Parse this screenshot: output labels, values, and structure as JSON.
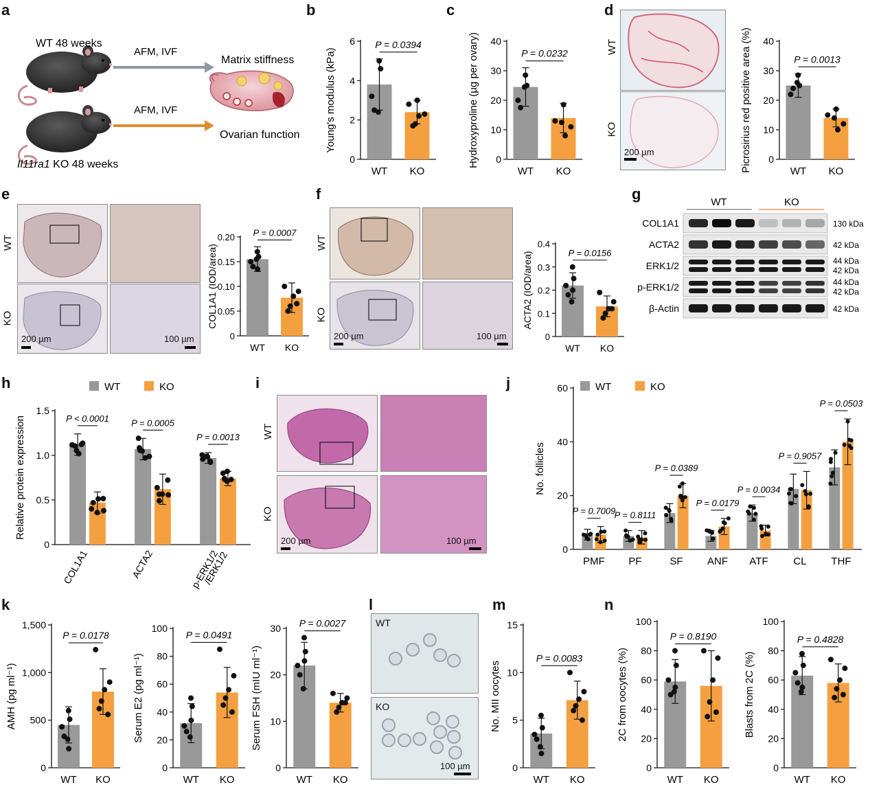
{
  "colors": {
    "wt": "#999999",
    "ko": "#f5a040",
    "ink": "#111111"
  },
  "panel_letters": [
    "a",
    "b",
    "c",
    "d",
    "e",
    "f",
    "g",
    "h",
    "i",
    "j",
    "k",
    "l",
    "m",
    "n"
  ],
  "schematic": {
    "wt_label": "WT 48 weeks",
    "ko_label_gene": "Il11ra1",
    "ko_label_rest": " KO 48 weeks",
    "arrow_top": "AFM, IVF",
    "arrow_bottom": "AFM, IVF",
    "out_top": "Matrix stiffness",
    "out_bottom": "Ovarian function"
  },
  "micro_labels": {
    "wt": "WT",
    "ko": "KO",
    "scale_200": "200 µm",
    "scale_100": "100 µm"
  },
  "western": {
    "group_wt": "WT",
    "group_ko": "KO",
    "rows": [
      {
        "name": "COL1A1",
        "kda": [
          "130 kDa"
        ]
      },
      {
        "name": "ACTA2",
        "kda": [
          "42 kDa"
        ]
      },
      {
        "name": "ERK1/2",
        "kda": [
          "44 kDa",
          "42 kDa"
        ]
      },
      {
        "name": "p-ERK1/2",
        "kda": [
          "44 kDa",
          "42 kDa"
        ]
      },
      {
        "name": "β-Actin",
        "kda": [
          "42 kDa"
        ]
      }
    ]
  },
  "chart_data": [
    {
      "id": "b",
      "type": "bar",
      "categories": [
        "WT",
        "KO"
      ],
      "values": [
        3.8,
        2.4
      ],
      "errors": [
        1.3,
        0.6
      ],
      "points": [
        [
          5.0,
          4.6,
          3.2,
          2.5,
          2.4
        ],
        [
          3.0,
          2.8,
          2.3,
          2.2,
          1.8,
          1.7
        ]
      ],
      "ylabel": "Young's modulus (kPa)",
      "ylim": [
        0,
        6
      ],
      "yticks": [
        0,
        2,
        4,
        6
      ],
      "p": "P = 0.0394"
    },
    {
      "id": "c",
      "type": "bar",
      "categories": [
        "WT",
        "KO"
      ],
      "values": [
        24.5,
        14
      ],
      "errors": [
        6.5,
        5
      ],
      "points": [
        [
          28.5,
          25,
          20,
          17.5,
          24.5
        ],
        [
          18.5,
          13,
          11,
          8,
          12.5
        ]
      ],
      "ylabel": "Hydroxyproline (µg per ovary)",
      "ylim": [
        0,
        40
      ],
      "yticks": [
        0,
        10,
        20,
        30,
        40
      ],
      "p": "P = 0.0232"
    },
    {
      "id": "d",
      "type": "bar",
      "categories": [
        "WT",
        "KO"
      ],
      "values": [
        25,
        14
      ],
      "errors": [
        4,
        3
      ],
      "points": [
        [
          28.5,
          25,
          22,
          24,
          26
        ],
        [
          17,
          15,
          12,
          10,
          14
        ]
      ],
      "ylabel": "Picrosirius red positive area (%)",
      "ylim": [
        0,
        40
      ],
      "yticks": [
        0,
        10,
        20,
        30,
        40
      ],
      "p": "P = 0.0013"
    },
    {
      "id": "e",
      "type": "bar",
      "categories": [
        "WT",
        "KO"
      ],
      "values": [
        0.155,
        0.077
      ],
      "errors": [
        0.025,
        0.03
      ],
      "points": [
        [
          0.17,
          0.16,
          0.15,
          0.14,
          0.155,
          0.135
        ],
        [
          0.1,
          0.09,
          0.08,
          0.06,
          0.05,
          0.065
        ]
      ],
      "ylabel": "COL1A1 (IOD/area)",
      "ylim": [
        0,
        0.2
      ],
      "yticks": [
        0,
        0.05,
        0.1,
        0.15,
        0.2
      ],
      "ytick_labels": [
        "0",
        "0.05",
        "0.10",
        "0.15",
        "0.20"
      ],
      "p": "P = 0.0007"
    },
    {
      "id": "f",
      "type": "bar",
      "categories": [
        "WT",
        "KO"
      ],
      "values": [
        0.22,
        0.13
      ],
      "errors": [
        0.055,
        0.045
      ],
      "points": [
        [
          0.3,
          0.25,
          0.22,
          0.18,
          0.15,
          0.2
        ],
        [
          0.19,
          0.15,
          0.12,
          0.1,
          0.08,
          0.12
        ]
      ],
      "ylabel": "ACTA2 (IOD/area)",
      "ylim": [
        0,
        0.4
      ],
      "yticks": [
        0,
        0.1,
        0.2,
        0.3,
        0.4
      ],
      "p": "P = 0.0156"
    },
    {
      "id": "h",
      "type": "bar",
      "categories": [
        "COL1A1",
        "ACTA2",
        "p-ERK1/2 /ERK1/2"
      ],
      "series": [
        {
          "name": "WT",
          "values": [
            1.12,
            1.07,
            0.97
          ],
          "errors": [
            0.12,
            0.12,
            0.06
          ]
        },
        {
          "name": "KO",
          "values": [
            0.47,
            0.62,
            0.74
          ],
          "errors": [
            0.12,
            0.17,
            0.08
          ]
        }
      ],
      "ylabel": "Relative protein expression",
      "ylim": [
        0,
        1.5
      ],
      "yticks": [
        0,
        0.5,
        1,
        1.5
      ],
      "ytick_labels": [
        "0",
        "0.5",
        "1.0",
        "1.5"
      ],
      "p": [
        "P < 0.0001",
        "P = 0.0005",
        "P = 0.0013"
      ],
      "legend": "top"
    },
    {
      "id": "j",
      "type": "bar",
      "categories": [
        "PMF",
        "PF",
        "SF",
        "ANF",
        "ATF",
        "CL",
        "THF"
      ],
      "series": [
        {
          "name": "WT",
          "values": [
            5.5,
            5,
            13.5,
            5,
            13.5,
            22.5,
            30.5
          ],
          "errors": [
            2,
            2,
            3.5,
            2,
            3,
            5.5,
            6.5
          ]
        },
        {
          "name": "KO",
          "values": [
            5.5,
            4.5,
            20,
            8.5,
            7,
            22,
            40
          ],
          "errors": [
            3,
            2.5,
            4.5,
            3,
            2,
            7,
            8.5
          ]
        }
      ],
      "ylabel": "No. follicles",
      "ylim": [
        0,
        60
      ],
      "yticks": [
        0,
        20,
        40,
        60
      ],
      "p": [
        "P = 0.7009",
        "P = 0.8111",
        "P = 0.0389",
        "P = 0.0179",
        "P = 0.0034",
        "P = 0.9057",
        "P = 0.0503"
      ],
      "legend": "top"
    },
    {
      "id": "k1",
      "type": "bar",
      "categories": [
        "WT",
        "KO"
      ],
      "values": [
        450,
        800
      ],
      "errors": [
        190,
        240
      ],
      "points": [
        [
          600,
          510,
          430,
          330,
          300,
          200
        ],
        [
          1240,
          900,
          820,
          700,
          620,
          560
        ]
      ],
      "ylabel": "AMH (pg ml⁻¹)",
      "ylim": [
        0,
        1500
      ],
      "yticks": [
        0,
        500,
        1000,
        1500
      ],
      "ytick_labels": [
        "0",
        "500",
        "1,000",
        "1,500"
      ],
      "p": "P = 0.0178"
    },
    {
      "id": "k2",
      "type": "bar",
      "categories": [
        "WT",
        "KO"
      ],
      "values": [
        32,
        54
      ],
      "errors": [
        14,
        18
      ],
      "points": [
        [
          50,
          44,
          30,
          26,
          22,
          34
        ],
        [
          85,
          66,
          56,
          50,
          45,
          40
        ]
      ],
      "ylabel": "Serum E2 (pg ml⁻¹)",
      "ylim": [
        0,
        100
      ],
      "yticks": [
        0,
        20,
        40,
        60,
        80,
        100
      ],
      "p": "P = 0.0491"
    },
    {
      "id": "k3",
      "type": "bar",
      "categories": [
        "WT",
        "KO"
      ],
      "values": [
        22,
        14
      ],
      "errors": [
        5,
        2
      ],
      "points": [
        [
          28,
          25,
          22,
          20,
          17,
          23
        ],
        [
          16,
          15,
          14,
          13,
          12,
          14
        ]
      ],
      "ylabel": "Serum FSH (mIU ml⁻¹)",
      "ylim": [
        0,
        30
      ],
      "yticks": [
        0,
        10,
        20,
        30
      ],
      "p": "P = 0.0027"
    },
    {
      "id": "m",
      "type": "bar",
      "categories": [
        "WT",
        "KO"
      ],
      "values": [
        3.6,
        7.1
      ],
      "errors": [
        1.6,
        2
      ],
      "points": [
        [
          5.5,
          4.2,
          3.5,
          3,
          2.2,
          1.5
        ],
        [
          10,
          8,
          7.2,
          6.5,
          6,
          5
        ]
      ],
      "ylabel": "No. MII oocytes",
      "ylim": [
        0,
        15
      ],
      "yticks": [
        0,
        5,
        10,
        15
      ],
      "p": "P = 0.0083"
    },
    {
      "id": "n1",
      "type": "bar",
      "categories": [
        "WT",
        "KO"
      ],
      "values": [
        59,
        56
      ],
      "errors": [
        15,
        24
      ],
      "points": [
        [
          80,
          70,
          60,
          50,
          52,
          55
        ],
        [
          80,
          75,
          60,
          45,
          35,
          38
        ]
      ],
      "ylabel": "2C from oocytes (%)",
      "ylim": [
        0,
        100
      ],
      "yticks": [
        0,
        20,
        40,
        60,
        80,
        100
      ],
      "p": "P = 0.8190"
    },
    {
      "id": "n2",
      "type": "bar",
      "categories": [
        "WT",
        "KO"
      ],
      "values": [
        63,
        58
      ],
      "errors": [
        13,
        13
      ],
      "points": [
        [
          78,
          70,
          65,
          58,
          52,
          55
        ],
        [
          74,
          68,
          60,
          54,
          48,
          50
        ]
      ],
      "ylabel": "Blasts from 2C (%)",
      "ylim": [
        0,
        100
      ],
      "yticks": [
        0,
        20,
        40,
        60,
        80,
        100
      ],
      "p": "P = 0.4828"
    }
  ]
}
